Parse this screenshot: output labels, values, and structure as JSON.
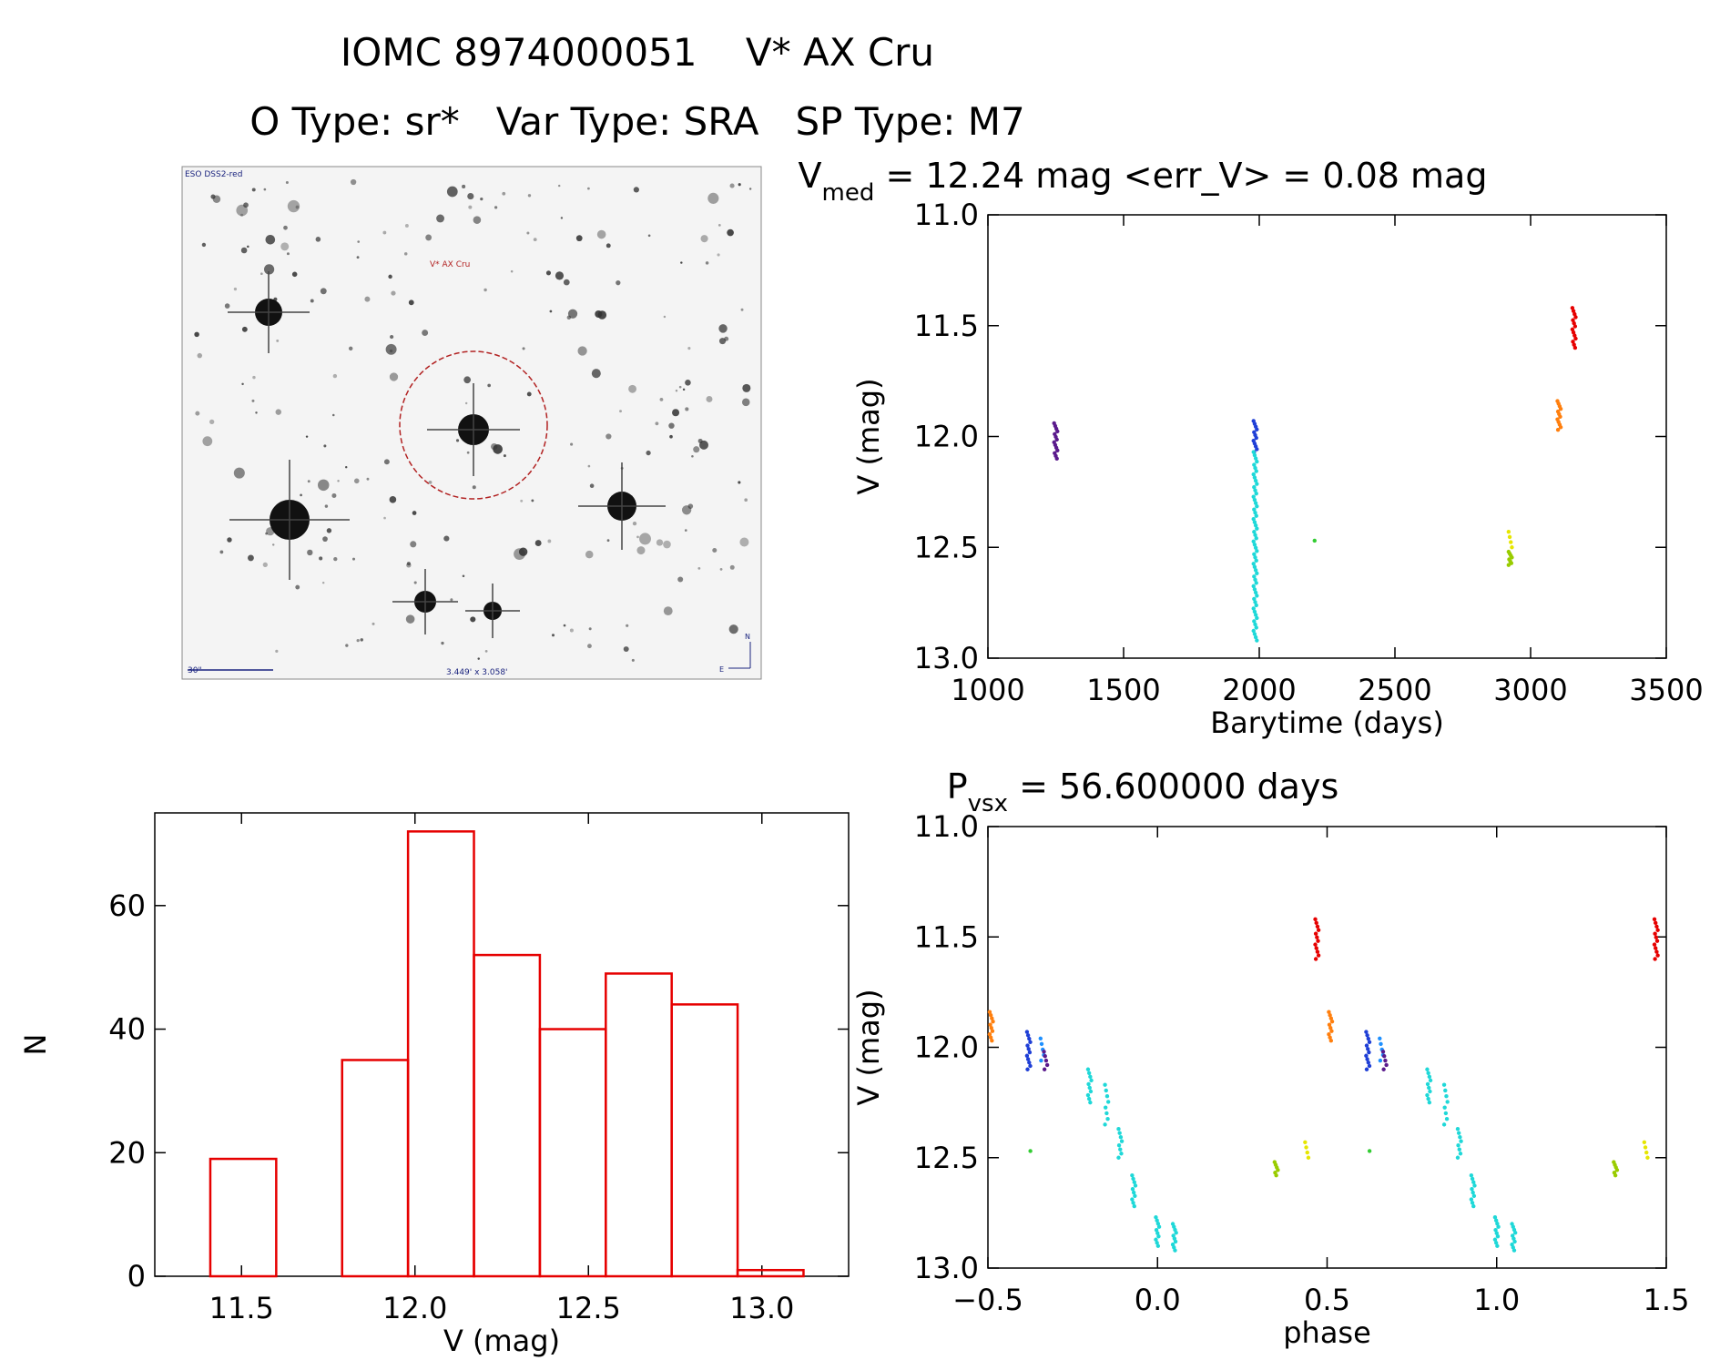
{
  "header": {
    "title": "IOMC 8974000051    V* AX Cru",
    "subtitle": "O Type: sr*   Var Type: SRA   SP Type: M7"
  },
  "image_panel": {
    "survey_label": "ESO DSS2-red",
    "target_label": "V* AX Cru",
    "scale_label": "30\"",
    "fov_label": "3.449' x 3.058'",
    "compass_n": "N",
    "compass_e": "E",
    "circle_color": "#b22222"
  },
  "chart_data": [
    {
      "id": "light_curve",
      "type": "scatter",
      "title_main": "V",
      "title_sub": "med",
      "title_rest": " = 12.24 mag <err_V> = 0.08 mag",
      "xlabel": "Barytime (days)",
      "ylabel": "V (mag)",
      "xlim": [
        1000,
        3500
      ],
      "ylim": [
        13.0,
        11.0
      ],
      "y_inverted": true,
      "xticks": [
        "1000",
        "1500",
        "2000",
        "2500",
        "3000",
        "3500"
      ],
      "yticks": [
        "11.0",
        "11.5",
        "12.0",
        "12.5",
        "13.0"
      ],
      "series": [
        {
          "color": "#5a1a8c",
          "x": 1250,
          "y_min": 11.94,
          "y_max": 12.1,
          "n": 14
        },
        {
          "color": "#1f3fd6",
          "x": 1985,
          "y_min": 11.93,
          "y_max": 12.07,
          "n": 12
        },
        {
          "color": "#1fd8d8",
          "x": 1985,
          "y_min": 12.07,
          "y_max": 12.92,
          "n": 60
        },
        {
          "color": "#33cc33",
          "x": 2210,
          "y_min": 12.47,
          "y_max": 12.47,
          "n": 1
        },
        {
          "color": "#99cc00",
          "x": 2925,
          "y_min": 12.52,
          "y_max": 12.58,
          "n": 8
        },
        {
          "color": "#e6e600",
          "x": 2925,
          "y_min": 12.43,
          "y_max": 12.5,
          "n": 4
        },
        {
          "color": "#ff7f0e",
          "x": 3105,
          "y_min": 11.84,
          "y_max": 11.97,
          "n": 12
        },
        {
          "color": "#e60000",
          "x": 3160,
          "y_min": 11.42,
          "y_max": 11.6,
          "n": 14
        }
      ]
    },
    {
      "id": "histogram",
      "type": "bar",
      "xlabel": "V (mag)",
      "ylabel": "N",
      "xlim": [
        11.25,
        13.25
      ],
      "ylim": [
        0,
        75
      ],
      "xticks": [
        "11.5",
        "12.0",
        "12.5",
        "13.0"
      ],
      "yticks": [
        "0",
        "20",
        "40",
        "60"
      ],
      "bin_edges": [
        11.41,
        11.6,
        11.79,
        11.98,
        12.17,
        12.36,
        12.55,
        12.74,
        12.93,
        13.12
      ],
      "values": [
        19,
        0,
        35,
        72,
        52,
        40,
        49,
        44,
        1
      ],
      "bar_color": "#e60000"
    },
    {
      "id": "phase_curve",
      "type": "scatter",
      "title_main": "P",
      "title_sub": "vsx",
      "title_rest": " = 56.600000 days",
      "xlabel": "phase",
      "ylabel": "V (mag)",
      "xlim": [
        -0.5,
        1.5
      ],
      "ylim": [
        13.0,
        11.0
      ],
      "y_inverted": true,
      "xticks": [
        "−0.5",
        "0.0",
        "0.5",
        "1.0",
        "1.5"
      ],
      "yticks": [
        "11.0",
        "11.5",
        "12.0",
        "12.5",
        "13.0"
      ],
      "series": [
        {
          "color": "#ff7f0e",
          "x": -0.49,
          "y_min": 11.84,
          "y_max": 11.97,
          "n": 10
        },
        {
          "color": "#1f3fd6",
          "x": -0.38,
          "y_min": 11.93,
          "y_max": 12.1,
          "n": 12
        },
        {
          "color": "#1e90ff",
          "x": -0.34,
          "y_min": 11.96,
          "y_max": 12.06,
          "n": 5
        },
        {
          "color": "#5a1a8c",
          "x": -0.33,
          "y_min": 12.02,
          "y_max": 12.1,
          "n": 5
        },
        {
          "color": "#33cc33",
          "x": -0.37,
          "y_min": 12.47,
          "y_max": 12.47,
          "n": 1
        },
        {
          "color": "#1fd8d8",
          "x": -0.2,
          "y_min": 12.1,
          "y_max": 12.25,
          "n": 10
        },
        {
          "color": "#1fd8d8",
          "x": -0.15,
          "y_min": 12.17,
          "y_max": 12.35,
          "n": 8
        },
        {
          "color": "#1fd8d8",
          "x": -0.11,
          "y_min": 12.37,
          "y_max": 12.5,
          "n": 8
        },
        {
          "color": "#1fd8d8",
          "x": -0.07,
          "y_min": 12.58,
          "y_max": 12.72,
          "n": 10
        },
        {
          "color": "#1fd8d8",
          "x": 0.0,
          "y_min": 12.77,
          "y_max": 12.9,
          "n": 10
        },
        {
          "color": "#1fd8d8",
          "x": 0.05,
          "y_min": 12.8,
          "y_max": 12.92,
          "n": 10
        },
        {
          "color": "#99cc00",
          "x": 0.35,
          "y_min": 12.52,
          "y_max": 12.58,
          "n": 6
        },
        {
          "color": "#e6e600",
          "x": 0.44,
          "y_min": 12.43,
          "y_max": 12.5,
          "n": 4
        },
        {
          "color": "#e60000",
          "x": 0.47,
          "y_min": 11.42,
          "y_max": 11.6,
          "n": 12
        },
        {
          "color": "#ff7f0e",
          "x": 0.51,
          "y_min": 11.84,
          "y_max": 11.97,
          "n": 10
        },
        {
          "color": "#1f3fd6",
          "x": 0.62,
          "y_min": 11.93,
          "y_max": 12.1,
          "n": 12
        },
        {
          "color": "#1e90ff",
          "x": 0.66,
          "y_min": 11.96,
          "y_max": 12.06,
          "n": 5
        },
        {
          "color": "#5a1a8c",
          "x": 0.67,
          "y_min": 12.02,
          "y_max": 12.1,
          "n": 5
        },
        {
          "color": "#33cc33",
          "x": 0.63,
          "y_min": 12.47,
          "y_max": 12.47,
          "n": 1
        },
        {
          "color": "#1fd8d8",
          "x": 0.8,
          "y_min": 12.1,
          "y_max": 12.25,
          "n": 10
        },
        {
          "color": "#1fd8d8",
          "x": 0.85,
          "y_min": 12.17,
          "y_max": 12.35,
          "n": 8
        },
        {
          "color": "#1fd8d8",
          "x": 0.89,
          "y_min": 12.37,
          "y_max": 12.5,
          "n": 8
        },
        {
          "color": "#1fd8d8",
          "x": 0.93,
          "y_min": 12.58,
          "y_max": 12.72,
          "n": 10
        },
        {
          "color": "#1fd8d8",
          "x": 1.0,
          "y_min": 12.77,
          "y_max": 12.9,
          "n": 10
        },
        {
          "color": "#1fd8d8",
          "x": 1.05,
          "y_min": 12.8,
          "y_max": 12.92,
          "n": 10
        },
        {
          "color": "#99cc00",
          "x": 1.35,
          "y_min": 12.52,
          "y_max": 12.58,
          "n": 6
        },
        {
          "color": "#e6e600",
          "x": 1.44,
          "y_min": 12.43,
          "y_max": 12.5,
          "n": 4
        },
        {
          "color": "#e60000",
          "x": 1.47,
          "y_min": 11.42,
          "y_max": 11.6,
          "n": 12
        }
      ]
    }
  ]
}
